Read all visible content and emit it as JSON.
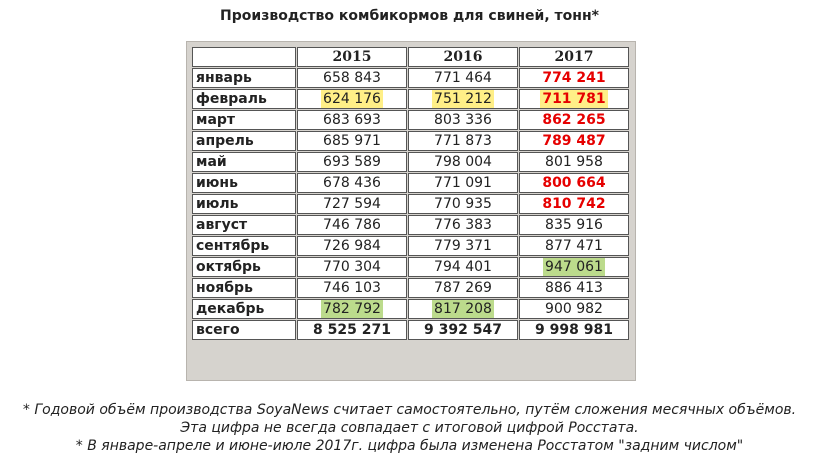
{
  "title": "Производство комбикормов для свиней, тонн*",
  "table": {
    "headers": [
      "",
      "2015",
      "2016",
      "2017"
    ],
    "rows": [
      {
        "label": "январь",
        "cells": [
          {
            "text": "658 843"
          },
          {
            "text": "771 464"
          },
          {
            "text": "774 241",
            "style": "red"
          }
        ]
      },
      {
        "label": "февраль",
        "cells": [
          {
            "text": "624 176",
            "highlight": "yellow"
          },
          {
            "text": "751 212",
            "highlight": "yellow"
          },
          {
            "text": "711 781",
            "style": "red",
            "highlight": "yellow"
          }
        ]
      },
      {
        "label": "март",
        "cells": [
          {
            "text": "683 693"
          },
          {
            "text": "803 336"
          },
          {
            "text": "862 265",
            "style": "red"
          }
        ]
      },
      {
        "label": "апрель",
        "cells": [
          {
            "text": "685 971"
          },
          {
            "text": "771 873"
          },
          {
            "text": "789 487",
            "style": "red"
          }
        ]
      },
      {
        "label": "май",
        "cells": [
          {
            "text": "693 589"
          },
          {
            "text": "798 004"
          },
          {
            "text": "801 958"
          }
        ]
      },
      {
        "label": "июнь",
        "cells": [
          {
            "text": "678 436"
          },
          {
            "text": "771 091"
          },
          {
            "text": "800 664",
            "style": "red"
          }
        ]
      },
      {
        "label": "июль",
        "cells": [
          {
            "text": "727 594"
          },
          {
            "text": "770 935"
          },
          {
            "text": "810 742",
            "style": "red"
          }
        ]
      },
      {
        "label": "август",
        "cells": [
          {
            "text": "746 786"
          },
          {
            "text": "776 383"
          },
          {
            "text": "835 916"
          }
        ]
      },
      {
        "label": "сентябрь",
        "cells": [
          {
            "text": "726 984"
          },
          {
            "text": "779 371"
          },
          {
            "text": "877 471"
          }
        ]
      },
      {
        "label": "октябрь",
        "cells": [
          {
            "text": "770 304"
          },
          {
            "text": "794 401"
          },
          {
            "text": "947 061",
            "highlight": "green"
          }
        ]
      },
      {
        "label": "ноябрь",
        "cells": [
          {
            "text": "746 103"
          },
          {
            "text": "787 269"
          },
          {
            "text": "886 413"
          }
        ]
      },
      {
        "label": "декабрь",
        "cells": [
          {
            "text": "782 792",
            "highlight": "green"
          },
          {
            "text": "817 208",
            "highlight": "green"
          },
          {
            "text": "900 982"
          }
        ]
      },
      {
        "label": "всего",
        "cells": [
          {
            "text": "8 525 271",
            "style": "total"
          },
          {
            "text": "9 392 547",
            "style": "total"
          },
          {
            "text": "9 998 981",
            "style": "total"
          }
        ]
      }
    ]
  },
  "colors": {
    "red_value": "#e60000",
    "highlight_yellow": "#ffef87",
    "highlight_green": "#bcdb8c",
    "frame": "#d6d3ce"
  },
  "footnotes": [
    "* Годовой объём производства SoyaNews считает самостоятельно, путём сложения месячных объёмов.",
    "Эта цифра не всегда совпадает с итоговой цифрой Росстата.",
    "* В январе-апреле и июне-июле 2017г. цифра была изменена Росстатом \"задним числом\""
  ]
}
